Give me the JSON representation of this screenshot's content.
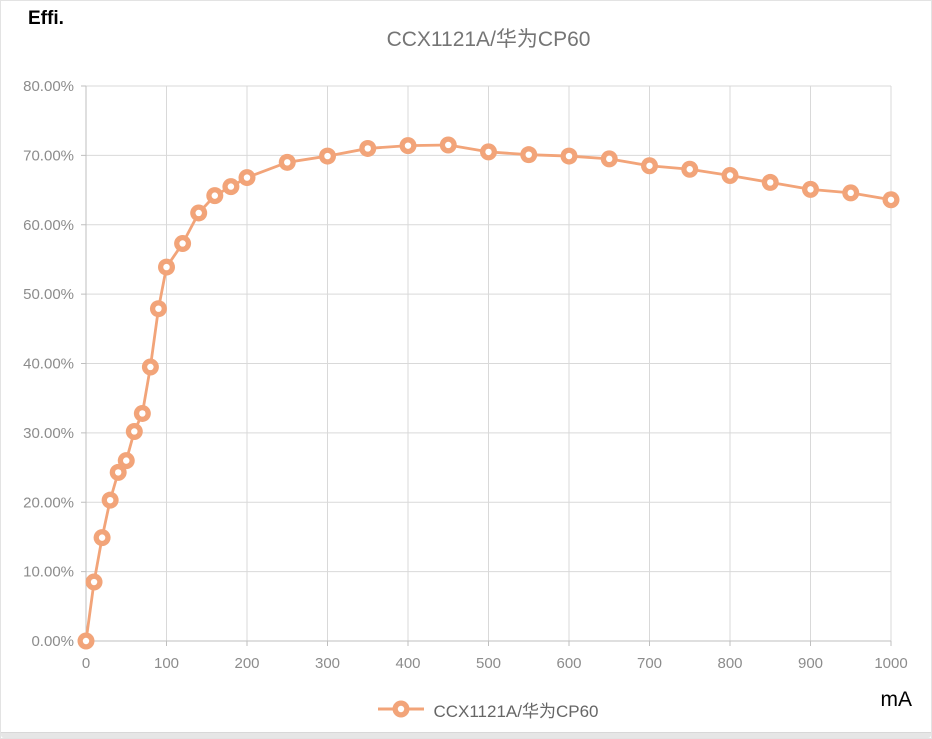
{
  "header": {
    "y_axis_unit": "Effi.",
    "title": "CCX1121A/华为CP60"
  },
  "footer": {
    "x_axis_unit": "mA"
  },
  "legend": {
    "label": "CCX1121A/华为CP60"
  },
  "colors": {
    "series": "#F2A479",
    "marker_hole": "#FFFFFF",
    "gridline": "#D9D9D9",
    "axis": "#BFBFBF",
    "tick_label": "#8C8C8C",
    "title_text": "#757575",
    "legend_text": "#666666",
    "unit_text": "#000000",
    "bottom_strip": "#E6E6E6"
  },
  "chart_data": {
    "type": "line",
    "title": "CCX1121A/华为CP60",
    "xlabel": "mA",
    "ylabel": "Effi.",
    "grid": true,
    "legend_position": "bottom",
    "marker": "donut",
    "xlim": [
      0,
      1000
    ],
    "ylim": [
      0,
      80
    ],
    "x_ticks": [
      0,
      100,
      200,
      300,
      400,
      500,
      600,
      700,
      800,
      900,
      1000
    ],
    "x_tick_labels": [
      "0",
      "100",
      "200",
      "300",
      "400",
      "500",
      "600",
      "700",
      "800",
      "900",
      "1000"
    ],
    "y_ticks": [
      0,
      10,
      20,
      30,
      40,
      50,
      60,
      70,
      80
    ],
    "y_tick_labels": [
      "0.00%",
      "10.00%",
      "20.00%",
      "30.00%",
      "40.00%",
      "50.00%",
      "60.00%",
      "70.00%",
      "80.00%"
    ],
    "x": [
      0,
      10,
      20,
      30,
      40,
      50,
      60,
      70,
      80,
      90,
      100,
      120,
      140,
      160,
      180,
      200,
      250,
      300,
      350,
      400,
      450,
      500,
      550,
      600,
      650,
      700,
      750,
      800,
      850,
      900,
      950,
      1000
    ],
    "series": [
      {
        "name": "CCX1121A/华为CP60",
        "values": [
          0.0,
          8.5,
          14.9,
          20.3,
          24.3,
          26.0,
          30.2,
          32.8,
          39.5,
          47.9,
          53.9,
          57.3,
          61.7,
          64.2,
          65.5,
          66.8,
          69.0,
          69.9,
          71.0,
          71.4,
          71.5,
          70.5,
          70.1,
          69.9,
          69.5,
          68.5,
          68.0,
          67.1,
          66.1,
          65.1,
          64.6,
          63.6
        ]
      }
    ]
  }
}
